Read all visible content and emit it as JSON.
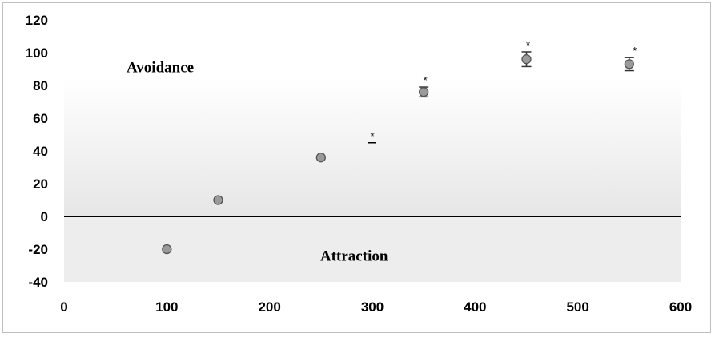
{
  "chart_data": {
    "type": "scatter",
    "title": "",
    "xlabel": "",
    "ylabel": "",
    "xlim": [
      0,
      600
    ],
    "ylim": [
      -40,
      120
    ],
    "x_ticks": [
      "0",
      "100",
      "200",
      "300",
      "400",
      "500",
      "600"
    ],
    "y_ticks": [
      "120",
      "100",
      "80",
      "60",
      "40",
      "20",
      "0",
      "-20",
      "-40"
    ],
    "grid": false,
    "legend": "none",
    "series": [
      {
        "points": [
          {
            "x": 100,
            "y": -20,
            "err": 0,
            "sig": ""
          },
          {
            "x": 150,
            "y": 10,
            "err": 0,
            "sig": ""
          },
          {
            "x": 250,
            "y": 36,
            "err": 0,
            "sig": ""
          },
          {
            "x": 300,
            "y": 45,
            "err": 0,
            "sig": "*"
          },
          {
            "x": 350,
            "y": 76,
            "err": 3,
            "sig": "*"
          },
          {
            "x": 450,
            "y": 96,
            "err": 4.5,
            "sig": "*"
          },
          {
            "x": 550,
            "y": 93,
            "err": 4,
            "sig": "*"
          }
        ]
      }
    ],
    "annotations": {
      "above_zero": "Avoidance",
      "below_zero": "Attraction"
    },
    "colors": {
      "marker_fill": "#9a9a9a",
      "marker_stroke": "#555555",
      "zero_line": "#000000"
    }
  }
}
